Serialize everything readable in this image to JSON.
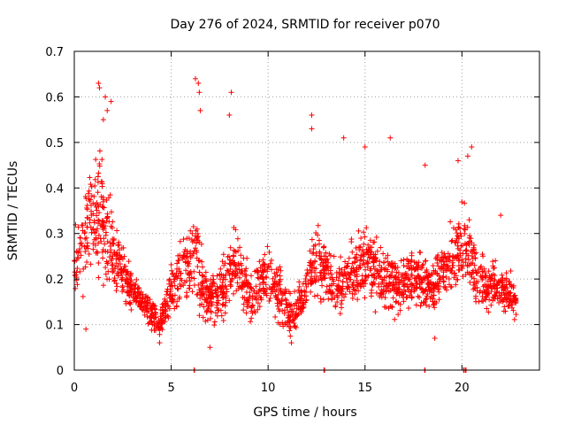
{
  "chart_data": {
    "type": "scatter",
    "title": "Day 276 of 2024, SRMTID for receiver p070",
    "xlabel": "GPS time / hours",
    "ylabel": "SRMTID / TECUs",
    "xlim": [
      0,
      24
    ],
    "ylim": [
      0,
      0.7
    ],
    "xticks": [
      0,
      5,
      10,
      15,
      20
    ],
    "xtick_labels": [
      "0",
      "5",
      "10",
      "15",
      "20"
    ],
    "yticks": [
      0,
      0.1,
      0.2,
      0.3,
      0.4,
      0.5,
      0.6,
      0.7
    ],
    "ytick_labels": [
      "0",
      "0.1",
      "0.2",
      "0.3",
      "0.4",
      "0.5",
      "0.6",
      "0.7"
    ],
    "grid": true,
    "marker": "+",
    "color": "#ff0000",
    "series": [
      {
        "name": "SRMTID",
        "envelope": {
          "x": [
            0.0,
            0.3,
            0.6,
            0.9,
            1.2,
            1.5,
            1.8,
            2.1,
            2.5,
            3.0,
            3.5,
            4.0,
            4.4,
            4.7,
            5.0,
            5.5,
            6.0,
            6.3,
            6.6,
            7.0,
            7.5,
            8.0,
            8.4,
            8.8,
            9.2,
            9.6,
            10.0,
            10.5,
            11.0,
            11.4,
            11.8,
            12.2,
            12.6,
            13.0,
            13.5,
            14.0,
            14.5,
            15.0,
            15.5,
            16.0,
            16.5,
            17.0,
            17.5,
            18.0,
            18.5,
            19.0,
            19.5,
            20.0,
            20.4,
            20.8,
            21.2,
            21.6,
            22.0,
            22.4,
            22.8
          ],
          "center": [
            0.22,
            0.26,
            0.3,
            0.34,
            0.36,
            0.34,
            0.3,
            0.24,
            0.22,
            0.17,
            0.15,
            0.12,
            0.1,
            0.14,
            0.18,
            0.22,
            0.24,
            0.26,
            0.18,
            0.15,
            0.17,
            0.2,
            0.24,
            0.18,
            0.16,
            0.19,
            0.21,
            0.18,
            0.13,
            0.12,
            0.16,
            0.22,
            0.24,
            0.21,
            0.18,
            0.2,
            0.22,
            0.24,
            0.22,
            0.2,
            0.19,
            0.18,
            0.21,
            0.2,
            0.18,
            0.21,
            0.24,
            0.28,
            0.26,
            0.2,
            0.18,
            0.19,
            0.17,
            0.17,
            0.16
          ],
          "spread": [
            0.09,
            0.1,
            0.11,
            0.12,
            0.14,
            0.15,
            0.12,
            0.08,
            0.07,
            0.05,
            0.04,
            0.04,
            0.03,
            0.05,
            0.06,
            0.07,
            0.09,
            0.12,
            0.07,
            0.06,
            0.07,
            0.08,
            0.1,
            0.07,
            0.06,
            0.07,
            0.08,
            0.07,
            0.05,
            0.05,
            0.06,
            0.09,
            0.08,
            0.07,
            0.06,
            0.07,
            0.08,
            0.09,
            0.08,
            0.07,
            0.07,
            0.07,
            0.07,
            0.07,
            0.07,
            0.07,
            0.08,
            0.09,
            0.09,
            0.07,
            0.06,
            0.06,
            0.05,
            0.05,
            0.05
          ]
        },
        "outliers": [
          [
            1.25,
            0.63
          ],
          [
            1.3,
            0.62
          ],
          [
            1.6,
            0.6
          ],
          [
            1.9,
            0.59
          ],
          [
            1.7,
            0.57
          ],
          [
            1.5,
            0.55
          ],
          [
            6.25,
            0.64
          ],
          [
            6.4,
            0.63
          ],
          [
            6.45,
            0.61
          ],
          [
            6.5,
            0.57
          ],
          [
            8.1,
            0.61
          ],
          [
            8.0,
            0.56
          ],
          [
            12.25,
            0.56
          ],
          [
            12.25,
            0.53
          ],
          [
            13.9,
            0.51
          ],
          [
            15.0,
            0.49
          ],
          [
            16.3,
            0.51
          ],
          [
            18.1,
            0.45
          ],
          [
            20.5,
            0.49
          ],
          [
            19.8,
            0.46
          ],
          [
            20.3,
            0.47
          ],
          [
            22.0,
            0.34
          ],
          [
            7.0,
            0.05
          ],
          [
            4.4,
            0.06
          ],
          [
            11.2,
            0.06
          ],
          [
            0.6,
            0.09
          ],
          [
            18.6,
            0.07
          ]
        ],
        "zero_points": [
          6.2,
          12.9,
          18.1,
          20.1,
          20.2
        ],
        "count": 2200,
        "seed": 276
      }
    ]
  }
}
